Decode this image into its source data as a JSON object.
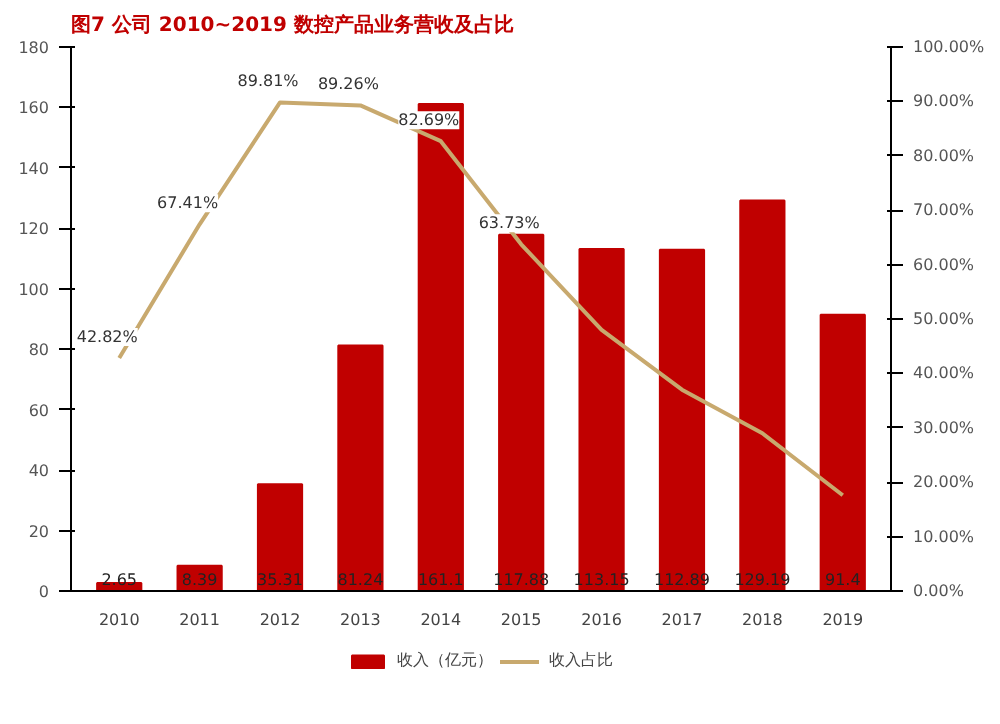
{
  "chart_data": {
    "type": "bar",
    "title": "图7 公司 2010~2019 数控产品业务营收及占比",
    "categories": [
      "2010",
      "2011",
      "2012",
      "2013",
      "2014",
      "2015",
      "2016",
      "2017",
      "2018",
      "2019"
    ],
    "series": [
      {
        "name": "收入（亿元）",
        "type": "bar",
        "color": "#c00000",
        "values": [
          2.65,
          8.39,
          35.31,
          81.24,
          161.1,
          117.88,
          113.15,
          112.89,
          129.19,
          91.4
        ],
        "data_labels": true
      },
      {
        "name": "收入占比",
        "type": "line",
        "axis": "y2",
        "color": "#c8a96e",
        "values": [
          42.82,
          67.41,
          89.81,
          89.26,
          82.69,
          63.73,
          48,
          37,
          29,
          17.6
        ],
        "value_labels": [
          "42.82%",
          "67.41%",
          "89.81%",
          "89.26%",
          "82.69%",
          "63.73%",
          null,
          null,
          null,
          null
        ]
      }
    ],
    "ylim": [
      0,
      180
    ],
    "yticks": [
      0,
      20,
      40,
      60,
      80,
      100,
      120,
      140,
      160,
      180
    ],
    "y2lim": [
      0,
      100
    ],
    "y2ticks": [
      {
        "value": 0,
        "label": "0.00%"
      },
      {
        "value": 10,
        "label": "10.00%"
      },
      {
        "value": 20,
        "label": "20.00%"
      },
      {
        "value": 30,
        "label": "30.00%"
      },
      {
        "value": 40,
        "label": "40.00%"
      },
      {
        "value": 50,
        "label": "50.00%"
      },
      {
        "value": 60,
        "label": "60.00%"
      },
      {
        "value": 70,
        "label": "70.00%"
      },
      {
        "value": 80,
        "label": "80.00%"
      },
      {
        "value": 90,
        "label": "90.00%"
      },
      {
        "value": 100,
        "label": "100.00%"
      }
    ],
    "grid": false,
    "legend": "bottom"
  }
}
